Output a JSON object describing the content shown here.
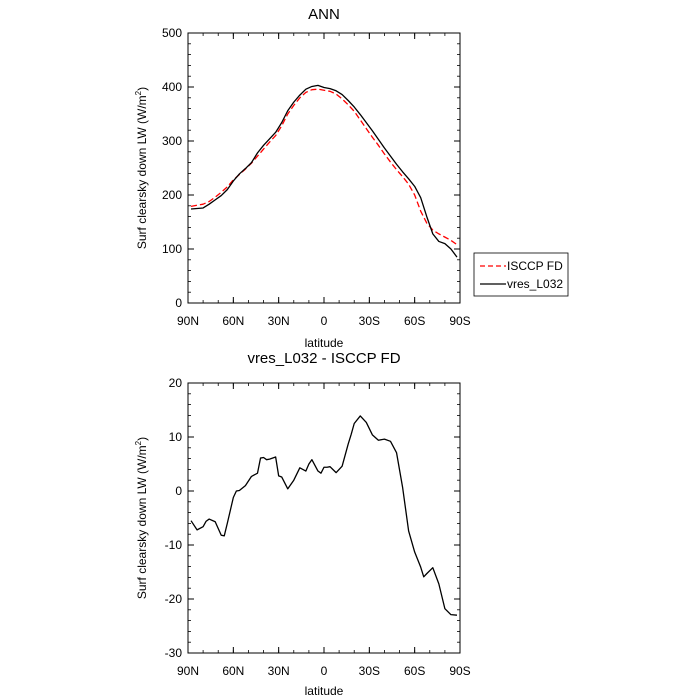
{
  "chart_data": [
    {
      "type": "line",
      "title": "ANN",
      "xlabel": "latitude",
      "ylabel_prefix": "Surf clearsky down LW (W/m",
      "ylabel_sup": "2",
      "ylabel_suffix": ")",
      "xlim": [
        90,
        -90
      ],
      "ylim": [
        0,
        500
      ],
      "xticks": [
        90,
        60,
        30,
        0,
        -30,
        -60,
        -90
      ],
      "xtick_labels": [
        "90N",
        "60N",
        "30N",
        "0",
        "30S",
        "60S",
        "90S"
      ],
      "yticks": [
        0,
        100,
        200,
        300,
        400,
        500
      ],
      "ytick_labels": [
        "0",
        "100",
        "200",
        "300",
        "400",
        "500"
      ],
      "legend": {
        "placement": "right"
      },
      "series": [
        {
          "name": "ISCCP FD",
          "color": "#ff0000",
          "dash": "dashed",
          "x": [
            88,
            84,
            80,
            76,
            72,
            68,
            64,
            60,
            56,
            52,
            48,
            44,
            40,
            36,
            32,
            28,
            24,
            20,
            16,
            12,
            8,
            4,
            0,
            -4,
            -8,
            -12,
            -16,
            -20,
            -24,
            -28,
            -32,
            -36,
            -40,
            -44,
            -48,
            -52,
            -56,
            -60,
            -64,
            -68,
            -72,
            -76,
            -80,
            -84,
            -88
          ],
          "y": [
            179,
            181,
            183,
            188,
            196,
            205,
            215,
            228,
            238,
            248,
            259,
            272,
            285,
            298,
            310,
            328,
            350,
            366,
            380,
            390,
            395,
            396,
            394,
            392,
            387,
            378,
            367,
            355,
            339,
            323,
            307,
            292,
            276,
            261,
            247,
            234,
            220,
            200,
            170,
            148,
            135,
            128,
            122,
            116,
            108
          ]
        },
        {
          "name": "vres_L032",
          "color": "#000000",
          "dash": "solid",
          "x": [
            88,
            84,
            80,
            76,
            72,
            68,
            64,
            60,
            56,
            52,
            48,
            44,
            40,
            36,
            32,
            28,
            24,
            20,
            16,
            12,
            8,
            4,
            0,
            -4,
            -8,
            -12,
            -16,
            -20,
            -24,
            -28,
            -32,
            -36,
            -40,
            -44,
            -48,
            -52,
            -56,
            -60,
            -64,
            -68,
            -72,
            -76,
            -80,
            -84,
            -88
          ],
          "y": [
            174,
            175,
            176,
            183,
            191,
            199,
            210,
            226,
            239,
            249,
            260,
            278,
            292,
            304,
            316,
            334,
            356,
            372,
            385,
            396,
            401,
            403,
            399,
            397,
            393,
            386,
            375,
            363,
            349,
            334,
            319,
            303,
            287,
            272,
            257,
            243,
            230,
            216,
            195,
            160,
            128,
            114,
            110,
            100,
            85
          ]
        }
      ]
    },
    {
      "type": "line",
      "title": "vres_L032 - ISCCP FD",
      "xlabel": "latitude",
      "ylabel_prefix": "Surf clearsky down LW (W/m",
      "ylabel_sup": "2",
      "ylabel_suffix": ")",
      "xlim": [
        90,
        -90
      ],
      "ylim": [
        -30,
        20
      ],
      "xticks": [
        90,
        60,
        30,
        0,
        -30,
        -60,
        -90
      ],
      "xtick_labels": [
        "90N",
        "60N",
        "30N",
        "0",
        "30S",
        "60S",
        "90S"
      ],
      "yticks": [
        -30,
        -20,
        -10,
        0,
        10,
        20
      ],
      "ytick_labels": [
        "-30",
        "-20",
        "-10",
        "0",
        "10",
        "20"
      ],
      "series": [
        {
          "name": "",
          "color": "#000000",
          "dash": "solid",
          "x": [
            88,
            84,
            80,
            78,
            76,
            72,
            68,
            66,
            64,
            60,
            58,
            56,
            52,
            48,
            44,
            42,
            40,
            38,
            36,
            32,
            30,
            28,
            24,
            20,
            16,
            12,
            10,
            8,
            4,
            2,
            0,
            -2,
            -4,
            -8,
            -12,
            -16,
            -18,
            -20,
            -24,
            -28,
            -32,
            -36,
            -40,
            -44,
            -48,
            -52,
            -56,
            -60,
            -64,
            -66,
            -68,
            -72,
            -76,
            -80,
            -84,
            -88
          ],
          "y": [
            -5.5,
            -7.2,
            -6.6,
            -5.6,
            -5.2,
            -5.7,
            -8.2,
            -8.3,
            -6.0,
            -1.2,
            0.0,
            0.1,
            1.0,
            2.7,
            3.3,
            6.1,
            6.2,
            5.8,
            5.9,
            6.3,
            2.8,
            2.6,
            0.4,
            2.0,
            4.3,
            3.7,
            5.0,
            5.8,
            3.7,
            3.3,
            4.4,
            4.4,
            4.5,
            3.4,
            4.6,
            8.7,
            10.5,
            12.5,
            13.9,
            12.7,
            10.4,
            9.4,
            9.6,
            9.2,
            7.1,
            0.7,
            -7.4,
            -11.3,
            -14.1,
            -15.9,
            -15.3,
            -14.2,
            -17.2,
            -21.8,
            -22.9,
            -23.0
          ]
        }
      ]
    }
  ],
  "legend": {
    "entries": [
      {
        "label": "ISCCP FD",
        "color": "#ff0000",
        "dash": "dashed"
      },
      {
        "label": "vres_L032",
        "color": "#000000",
        "dash": "solid"
      }
    ]
  }
}
